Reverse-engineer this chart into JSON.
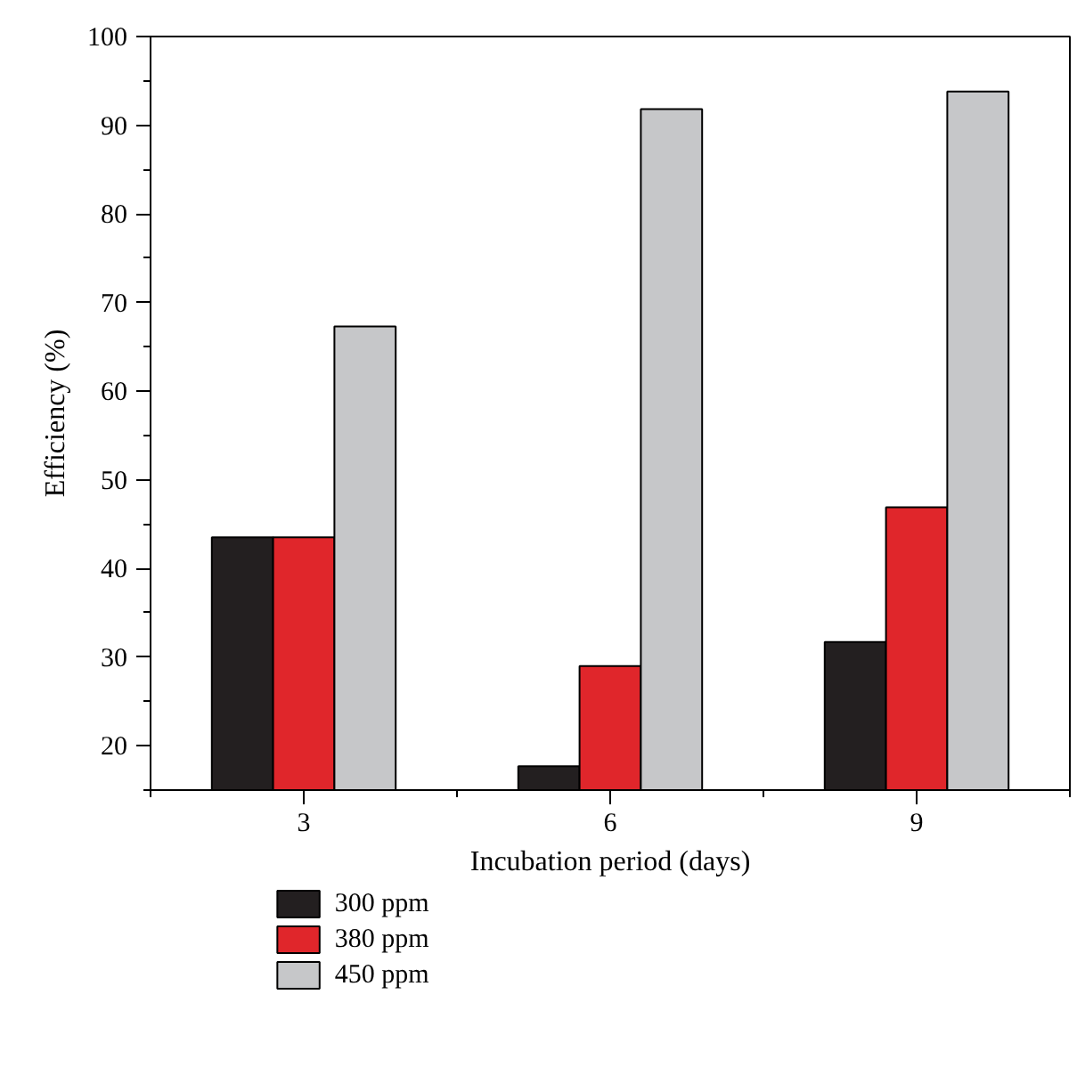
{
  "chart_data": {
    "type": "bar",
    "xlabel": "Incubation period (days)",
    "ylabel": "Efficiency (%)",
    "categories": [
      "3",
      "6",
      "9"
    ],
    "series": [
      {
        "name": "300 ppm",
        "color": "#231f20",
        "values": [
          43.5,
          17.7,
          31.7
        ]
      },
      {
        "name": "380 ppm",
        "color": "#e0262b",
        "values": [
          43.5,
          29.0,
          46.9
        ]
      },
      {
        "name": "450 ppm",
        "color": "#c6c7c9",
        "values": [
          67.3,
          91.8,
          93.8
        ]
      }
    ],
    "ylim": [
      15,
      100
    ],
    "yticks": [
      20,
      30,
      40,
      50,
      60,
      70,
      80,
      90,
      100
    ],
    "grid": false,
    "legend": "bottom left"
  }
}
